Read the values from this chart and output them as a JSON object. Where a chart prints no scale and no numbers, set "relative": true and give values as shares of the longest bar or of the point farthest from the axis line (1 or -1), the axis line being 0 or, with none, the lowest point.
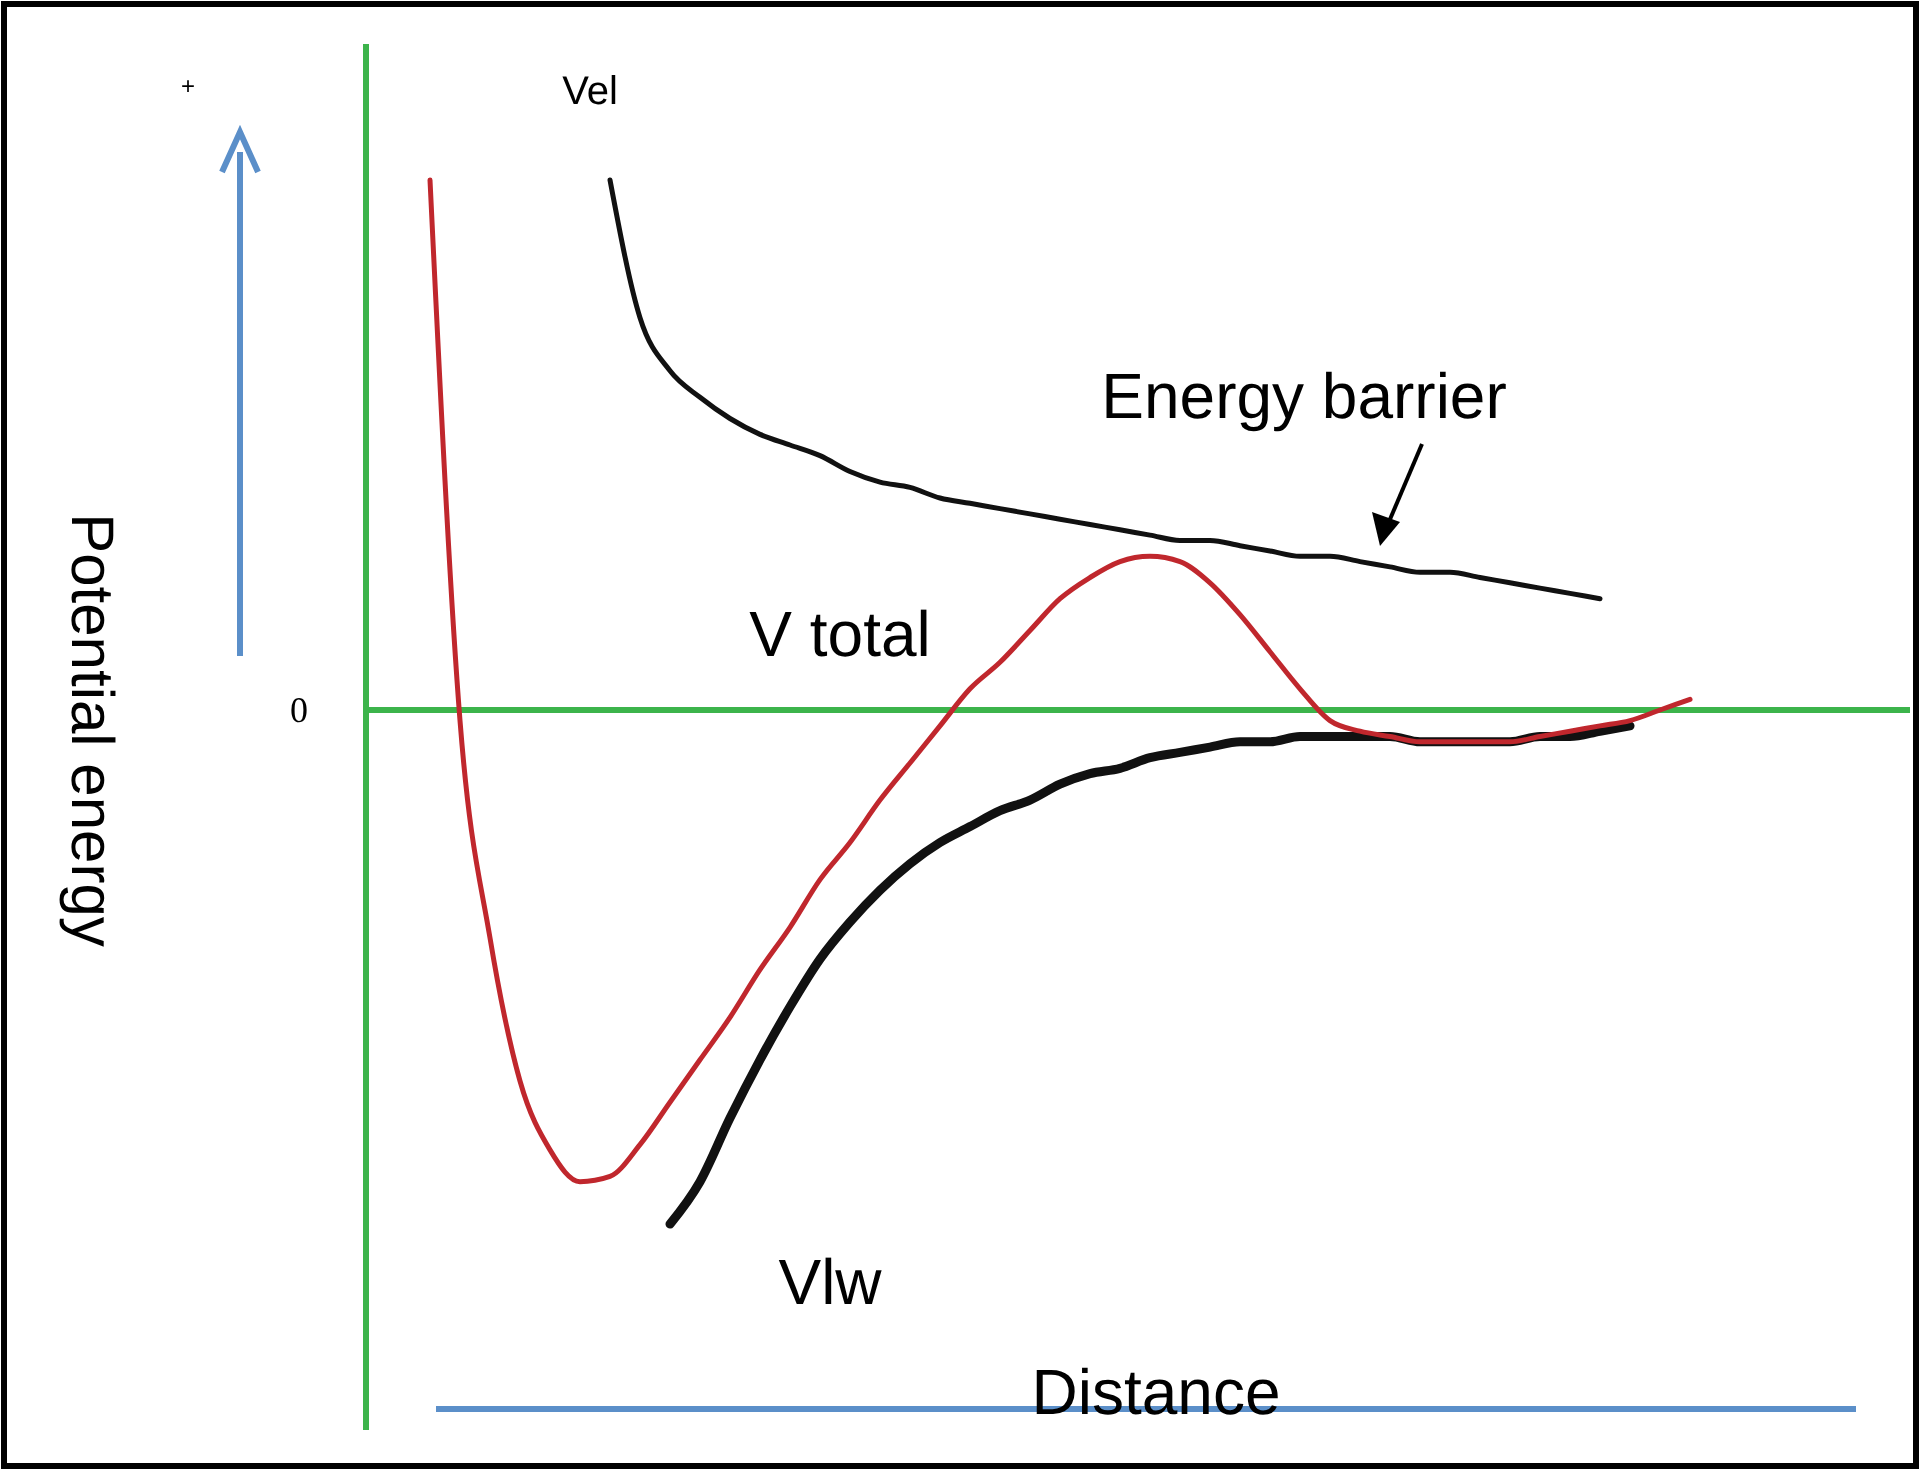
{
  "chart_data": {
    "type": "line",
    "relative": true,
    "xlabel": "Distance",
    "ylabel": "Potential energy",
    "categories": [
      null,
      null,
      null,
      null,
      null,
      null,
      null,
      null,
      null,
      null,
      null,
      null,
      null,
      null,
      null,
      null,
      null,
      null,
      null,
      null,
      null,
      null,
      null,
      null,
      null,
      null,
      null,
      null,
      null,
      null,
      null,
      null,
      null,
      null,
      null,
      null,
      null,
      null,
      null,
      null,
      null,
      null,
      null
    ],
    "series": [
      {
        "name": "Vel",
        "color": "#111111",
        "values": [
          null,
          null,
          null,
          null,
          null,
          null,
          1.0,
          0.74,
          0.64,
          0.59,
          0.55,
          0.52,
          0.5,
          0.48,
          0.45,
          0.43,
          0.42,
          0.4,
          0.39,
          0.38,
          0.37,
          0.36,
          0.35,
          0.34,
          0.33,
          0.32,
          0.32,
          0.31,
          0.3,
          0.29,
          0.29,
          0.28,
          0.27,
          0.26,
          0.26,
          0.25,
          0.24,
          0.23,
          0.22,
          0.21,
          null,
          null,
          null
        ]
      },
      {
        "name": "V total",
        "color": "#c0272d",
        "values": [
          1.0,
          -0.02,
          -0.43,
          -0.7,
          -0.83,
          -0.89,
          -0.88,
          -0.82,
          -0.74,
          -0.66,
          -0.58,
          -0.49,
          -0.41,
          -0.32,
          -0.25,
          -0.17,
          -0.1,
          -0.03,
          0.04,
          0.09,
          0.15,
          0.21,
          0.25,
          0.28,
          0.29,
          0.28,
          0.24,
          0.18,
          0.11,
          0.04,
          -0.02,
          -0.04,
          -0.05,
          -0.06,
          -0.06,
          -0.06,
          -0.06,
          -0.05,
          -0.04,
          -0.03,
          -0.02,
          0,
          0.02
        ]
      },
      {
        "name": "Vlw",
        "color": "#111111",
        "values": [
          null,
          null,
          null,
          null,
          null,
          null,
          null,
          null,
          -0.97,
          -0.89,
          -0.77,
          -0.66,
          -0.56,
          -0.47,
          -0.4,
          -0.34,
          -0.29,
          -0.25,
          -0.22,
          -0.19,
          -0.17,
          -0.14,
          -0.12,
          -0.11,
          -0.09,
          -0.08,
          -0.07,
          -0.06,
          -0.06,
          -0.05,
          -0.05,
          -0.05,
          -0.05,
          -0.06,
          -0.06,
          -0.06,
          -0.06,
          -0.05,
          -0.05,
          -0.04,
          -0.03,
          null,
          null
        ]
      }
    ],
    "ref_lines": [
      {
        "axis": "y",
        "value": 0,
        "label": "0",
        "color": "#3cb44b"
      }
    ],
    "annotations": [
      "Energy barrier",
      "+"
    ],
    "marker": "none",
    "line_style": "solid"
  }
}
